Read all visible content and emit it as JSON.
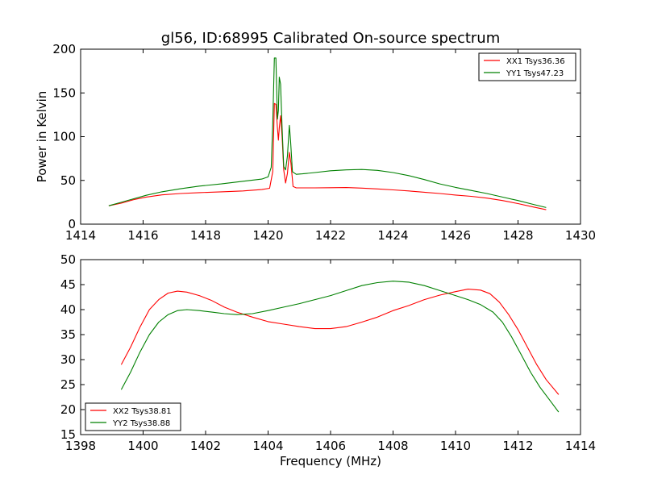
{
  "figure": {
    "title": "gl56, ID:68995 Calibrated On-source spectrum"
  },
  "chart_data": [
    {
      "type": "line",
      "title": "gl56, ID:68995 Calibrated On-source spectrum",
      "xlabel": "",
      "ylabel": "Power in Kelvin",
      "xlim": [
        1414,
        1430
      ],
      "ylim": [
        0,
        200
      ],
      "xticks": [
        "1414",
        "1416",
        "1418",
        "1420",
        "1422",
        "1424",
        "1426",
        "1428",
        "1430"
      ],
      "yticks": [
        "0",
        "50",
        "100",
        "150",
        "200"
      ],
      "grid": false,
      "legend": "top-right",
      "series": [
        {
          "name": "XX1 Tsys36.36",
          "color": "#ff0000",
          "x": [
            1414.9,
            1415.3,
            1415.7,
            1416.1,
            1416.6,
            1417.2,
            1417.8,
            1418.5,
            1419.2,
            1419.8,
            1420.05,
            1420.15,
            1420.2,
            1420.25,
            1420.3,
            1420.33,
            1420.36,
            1420.4,
            1420.45,
            1420.5,
            1420.56,
            1420.62,
            1420.68,
            1420.73,
            1420.8,
            1420.9,
            1421.1,
            1421.5,
            1422.0,
            1422.5,
            1423.0,
            1423.5,
            1424.0,
            1424.5,
            1425.0,
            1425.5,
            1426.0,
            1426.5,
            1427.0,
            1427.5,
            1428.0,
            1428.5,
            1428.9
          ],
          "y": [
            21,
            24,
            28,
            31,
            33.5,
            35,
            36,
            37,
            38,
            39.5,
            41,
            60,
            138,
            137,
            110,
            96,
            110,
            124,
            100,
            62,
            47,
            58,
            82,
            70,
            43,
            41.5,
            41.5,
            41.5,
            41.7,
            41.8,
            41.2,
            40.3,
            39.2,
            38,
            36.5,
            35,
            33.3,
            31.8,
            29.8,
            27,
            23.5,
            19.5,
            16.5
          ]
        },
        {
          "name": "YY1 Tsys47.23",
          "color": "#008000",
          "x": [
            1414.9,
            1415.3,
            1415.7,
            1416.1,
            1416.6,
            1417.2,
            1417.8,
            1418.5,
            1419.2,
            1419.8,
            1420.0,
            1420.1,
            1420.15,
            1420.2,
            1420.25,
            1420.3,
            1420.33,
            1420.36,
            1420.4,
            1420.45,
            1420.5,
            1420.56,
            1420.62,
            1420.68,
            1420.72,
            1420.78,
            1420.9,
            1421.1,
            1421.5,
            1422.0,
            1422.5,
            1423.0,
            1423.5,
            1424.0,
            1424.5,
            1425.0,
            1425.5,
            1426.0,
            1426.5,
            1427.0,
            1427.5,
            1428.0,
            1428.5,
            1428.9
          ],
          "y": [
            21,
            25,
            29,
            33,
            37,
            40.5,
            43.5,
            46,
            49,
            51.5,
            54,
            65,
            115,
            190,
            190,
            120,
            130,
            168,
            160,
            110,
            66,
            62,
            78,
            113,
            95,
            60,
            57,
            57.5,
            59,
            61,
            62,
            62.5,
            61.5,
            59,
            55.5,
            51,
            46,
            42,
            38.5,
            35,
            31,
            27,
            22.5,
            19
          ]
        }
      ]
    },
    {
      "type": "line",
      "title": "",
      "xlabel": "Frequency (MHz)",
      "ylabel": "",
      "xlim": [
        1398,
        1414
      ],
      "ylim": [
        15,
        50
      ],
      "xticks": [
        "1398",
        "1400",
        "1402",
        "1404",
        "1406",
        "1408",
        "1410",
        "1412",
        "1414"
      ],
      "yticks": [
        "15",
        "20",
        "25",
        "30",
        "35",
        "40",
        "45",
        "50"
      ],
      "grid": false,
      "legend": "bottom-left",
      "series": [
        {
          "name": "XX2 Tsys38.81",
          "color": "#ff0000",
          "x": [
            1399.3,
            1399.6,
            1399.9,
            1400.2,
            1400.5,
            1400.8,
            1401.1,
            1401.4,
            1401.8,
            1402.2,
            1402.6,
            1403.0,
            1403.5,
            1404.0,
            1404.5,
            1405.0,
            1405.5,
            1406.0,
            1406.5,
            1407.0,
            1407.5,
            1408.0,
            1408.5,
            1409.0,
            1409.5,
            1410.0,
            1410.4,
            1410.8,
            1411.1,
            1411.4,
            1411.7,
            1412.0,
            1412.3,
            1412.6,
            1412.9,
            1413.3
          ],
          "y": [
            29,
            32.5,
            36.5,
            40,
            42,
            43.3,
            43.7,
            43.5,
            42.8,
            41.8,
            40.5,
            39.5,
            38.5,
            37.6,
            37.1,
            36.6,
            36.2,
            36.2,
            36.6,
            37.5,
            38.5,
            39.8,
            40.8,
            42,
            42.9,
            43.6,
            44.1,
            43.9,
            43.2,
            41.5,
            39,
            36,
            32.5,
            29,
            26,
            23
          ]
        },
        {
          "name": "YY2 Tsys38.88",
          "color": "#008000",
          "x": [
            1399.3,
            1399.6,
            1399.9,
            1400.2,
            1400.5,
            1400.8,
            1401.1,
            1401.4,
            1401.8,
            1402.2,
            1402.6,
            1403.0,
            1403.5,
            1404.0,
            1404.5,
            1405.0,
            1405.5,
            1406.0,
            1406.5,
            1407.0,
            1407.5,
            1408.0,
            1408.5,
            1409.0,
            1409.5,
            1410.0,
            1410.4,
            1410.8,
            1411.2,
            1411.5,
            1411.8,
            1412.1,
            1412.4,
            1412.7,
            1413.0,
            1413.3
          ],
          "y": [
            24,
            27.5,
            31.5,
            35,
            37.5,
            39,
            39.8,
            40,
            39.8,
            39.5,
            39.2,
            39,
            39.2,
            39.8,
            40.5,
            41.2,
            42,
            42.8,
            43.8,
            44.8,
            45.4,
            45.7,
            45.5,
            44.8,
            43.8,
            42.8,
            42,
            41,
            39.5,
            37.5,
            34.5,
            31,
            27.5,
            24.5,
            22,
            19.5
          ]
        }
      ]
    }
  ]
}
